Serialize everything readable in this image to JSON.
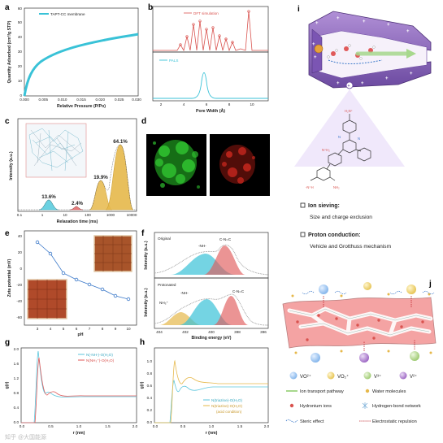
{
  "panels": {
    "a": {
      "label": "a",
      "legend": "TAPT-CC membrane",
      "xlabel": "Relative Pressure (P/Po)",
      "ylabel": "Quantity Adsorbed (cm³/g STP)",
      "xticks": [
        "0.000",
        "0.005",
        "0.010",
        "0.015",
        "0.020",
        "0.025",
        "0.030"
      ],
      "yticks": [
        "0",
        "10",
        "20",
        "30",
        "40",
        "50",
        "60"
      ]
    },
    "b": {
      "label": "b",
      "legend_top": "DFT simulation",
      "legend_bottom": "PALS",
      "xlabel": "Pore Width (Å)",
      "xticks": [
        "2",
        "4",
        "6",
        "8",
        "10"
      ]
    },
    "c": {
      "label": "c",
      "xlabel": "Relaxation time (ms)",
      "ylabel": "Intensity (a.u.)",
      "xticks": [
        "0.1",
        "1",
        "10",
        "100",
        "1000",
        "10000"
      ],
      "peaks": [
        "13.6%",
        "2.4%",
        "19.9%",
        "64.1%"
      ]
    },
    "d": {
      "label": "d"
    },
    "e": {
      "label": "e",
      "xlabel": "pH",
      "ylabel": "Zeta potential (mV)",
      "xticks": [
        "3",
        "4",
        "5",
        "6",
        "7",
        "8",
        "9",
        "10"
      ],
      "yticks": [
        "-60",
        "-40",
        "-20",
        "0",
        "20",
        "40"
      ]
    },
    "f": {
      "label": "f",
      "xlabel": "Binding energy (eV)",
      "ylabel": "Intensity (a.u.)",
      "xticks": [
        "404",
        "402",
        "400",
        "398",
        "396"
      ],
      "original": "Original",
      "protonated": "Protonated",
      "nh": "-NH-",
      "cnc": "C-N=C",
      "nh3": "NH₃⁺"
    },
    "g": {
      "label": "g",
      "xlabel": "r (nm)",
      "ylabel": "g(r)",
      "xticks": [
        "0.0",
        "0.5",
        "1.0",
        "1.5",
        "2.0"
      ],
      "yticks": [
        "0.0",
        "0.4",
        "0.8",
        "1.2",
        "1.6",
        "2.0"
      ],
      "legend1": "N(-NH-)-O(H₂O)",
      "legend2": "N(NH₃⁺)-O(H₂O)"
    },
    "h": {
      "label": "h",
      "xlabel": "r (nm)",
      "ylabel": "g(r)",
      "xticks": [
        "0.0",
        "0.5",
        "1.0",
        "1.5",
        "2.0"
      ],
      "yticks": [
        "0.0",
        "0.2",
        "0.4",
        "0.6",
        "0.8",
        "1.0"
      ],
      "legend1": "N(triazine)-O(H₂O)",
      "legend2": "N(triazine)-O(H₂O)",
      "legend2_note": "(acid condition)"
    },
    "i": {
      "label": "i",
      "sieving_title": "Ion sieving:",
      "sieving_text": "Size and charge exclusion",
      "proton_title": "Proton conduction:",
      "proton_text": "Vehicle and Grotthuss mechanism"
    },
    "j": {
      "label": "j",
      "legend": {
        "vo2p": "VO²⁺",
        "vo2": "VO₂⁺",
        "v3": "V³⁺",
        "v2": "V²⁺",
        "pathway": "Ion transport pathway",
        "water": "Water molecules",
        "hydronium": "Hydronium ions",
        "hbond": "Hydrogen-bond network",
        "steric": "Steric effect",
        "electro": "Electrostatic repulsion"
      }
    }
  },
  "watermark": "知乎 @大国能源",
  "colors": {
    "cyan": "#39c2d7",
    "gold": "#e6b84a",
    "red": "#d9534f",
    "purple": "#9b59b6",
    "blue": "#3a78c9",
    "pink": "#f4a3a3"
  }
}
